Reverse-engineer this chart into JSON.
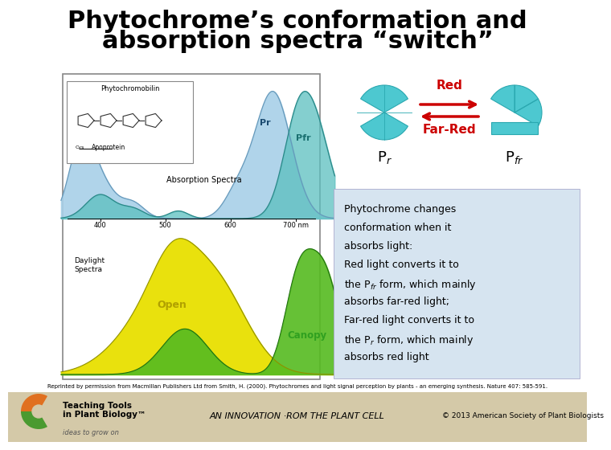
{
  "title_line1": "Phytochrome’s conformation and",
  "title_line2": "absorption spectra “switch”",
  "title_fontsize": 22,
  "bg_color": "#ffffff",
  "footer_bg": "#d4c9a8",
  "red_label": "Red",
  "far_red_label": "Far-Red",
  "arrow_color": "#cc0000",
  "cyan_color": "#4dc8d0",
  "cyan_dark": "#2aa8b0",
  "text_box_bg": "#d6e4f0",
  "text_box_text": "Phytochrome changes\nconformation when it\nabsorbs light:\nRed light converts it to\nthe Pⁱᵣ form, which mainly\nabsorbs far-red light;\nFar-red light converts it to\nthe Pᵣ form, which mainly\nabsorbs red light",
  "citation": "Reprinted by permission from Macmillan Publishers Ltd from Smith, H. (2000). Phytochromes and light signal perception by plants - an emerging synthesis. Nature 407: 585-591.",
  "footer_left1": "Teaching Tools",
  "footer_left2": "in Plant Biology™",
  "footer_left3": "ideas to grow on",
  "footer_mid": "AN INNOVATION ·ROM THE PLANT CELL",
  "footer_right": "© 2013 American Society of Plant Biologists",
  "spec_pr_color": "#a8d0e8",
  "spec_pfr_color": "#5bbfbf",
  "spec_pr_line": "#6699bb",
  "spec_pfr_line": "#2a8888",
  "day_yellow": "#e8e000",
  "day_green": "#55bb20",
  "wl_ticks": [
    "400",
    "500",
    "600",
    "700 nm"
  ]
}
